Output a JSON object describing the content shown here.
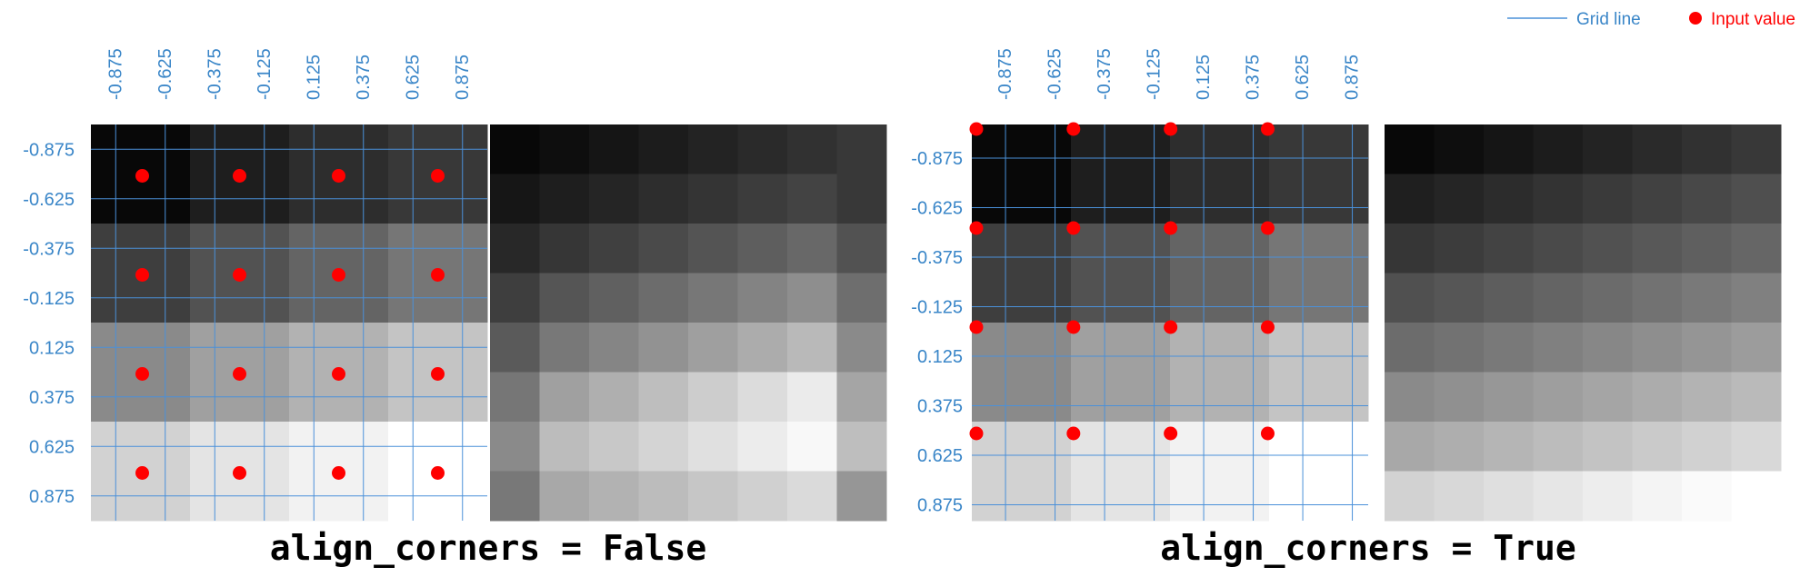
{
  "legend": {
    "grid_label": "Grid line",
    "input_label": "Input value"
  },
  "colors": {
    "grid_line": "#4a90d9",
    "tick_text": "#3a86c8",
    "input_dot": "#ff0000",
    "input_label": "#ff0000",
    "grid_label": "#3a86c8"
  },
  "tick_labels": [
    "-0.875",
    "-0.625",
    "-0.375",
    "-0.125",
    "0.125",
    "0.375",
    "0.625",
    "0.875"
  ],
  "panels": [
    {
      "caption": "align_corners = False",
      "align_corners": false,
      "input_gray": [
        [
          8,
          30,
          45,
          56
        ],
        [
          62,
          82,
          100,
          118
        ],
        [
          138,
          160,
          178,
          196
        ],
        [
          210,
          228,
          242,
          255
        ]
      ],
      "output_gray": [
        [
          8,
          14,
          21,
          28,
          35,
          42,
          49,
          56
        ],
        [
          22,
          30,
          37,
          45,
          52,
          60,
          67,
          56
        ],
        [
          40,
          54,
          64,
          74,
          84,
          94,
          104,
          82
        ],
        [
          62,
          85,
          96,
          108,
          119,
          131,
          142,
          110
        ],
        [
          90,
          120,
          133,
          146,
          159,
          172,
          185,
          138
        ],
        [
          118,
          160,
          175,
          190,
          205,
          220,
          235,
          165
        ],
        [
          138,
          188,
          200,
          212,
          224,
          236,
          248,
          190
        ],
        [
          120,
          168,
          178,
          188,
          198,
          208,
          218,
          150
        ]
      ]
    },
    {
      "caption": "align_corners = True",
      "align_corners": true,
      "input_gray": [
        [
          8,
          30,
          45,
          56
        ],
        [
          62,
          82,
          100,
          118
        ],
        [
          138,
          160,
          178,
          196
        ],
        [
          210,
          228,
          242,
          255
        ]
      ],
      "output_gray": [
        [
          8,
          14,
          21,
          28,
          35,
          42,
          49,
          56
        ],
        [
          31,
          37,
          44,
          51,
          58,
          65,
          72,
          79
        ],
        [
          54,
          60,
          67,
          74,
          81,
          88,
          95,
          102
        ],
        [
          80,
          86,
          93,
          100,
          107,
          114,
          121,
          128
        ],
        [
          108,
          114,
          121,
          128,
          135,
          142,
          149,
          156
        ],
        [
          138,
          144,
          151,
          158,
          165,
          172,
          179,
          186
        ],
        [
          168,
          174,
          181,
          188,
          195,
          202,
          209,
          216
        ],
        [
          210,
          216,
          223,
          230,
          237,
          244,
          250,
          255
        ]
      ]
    }
  ]
}
